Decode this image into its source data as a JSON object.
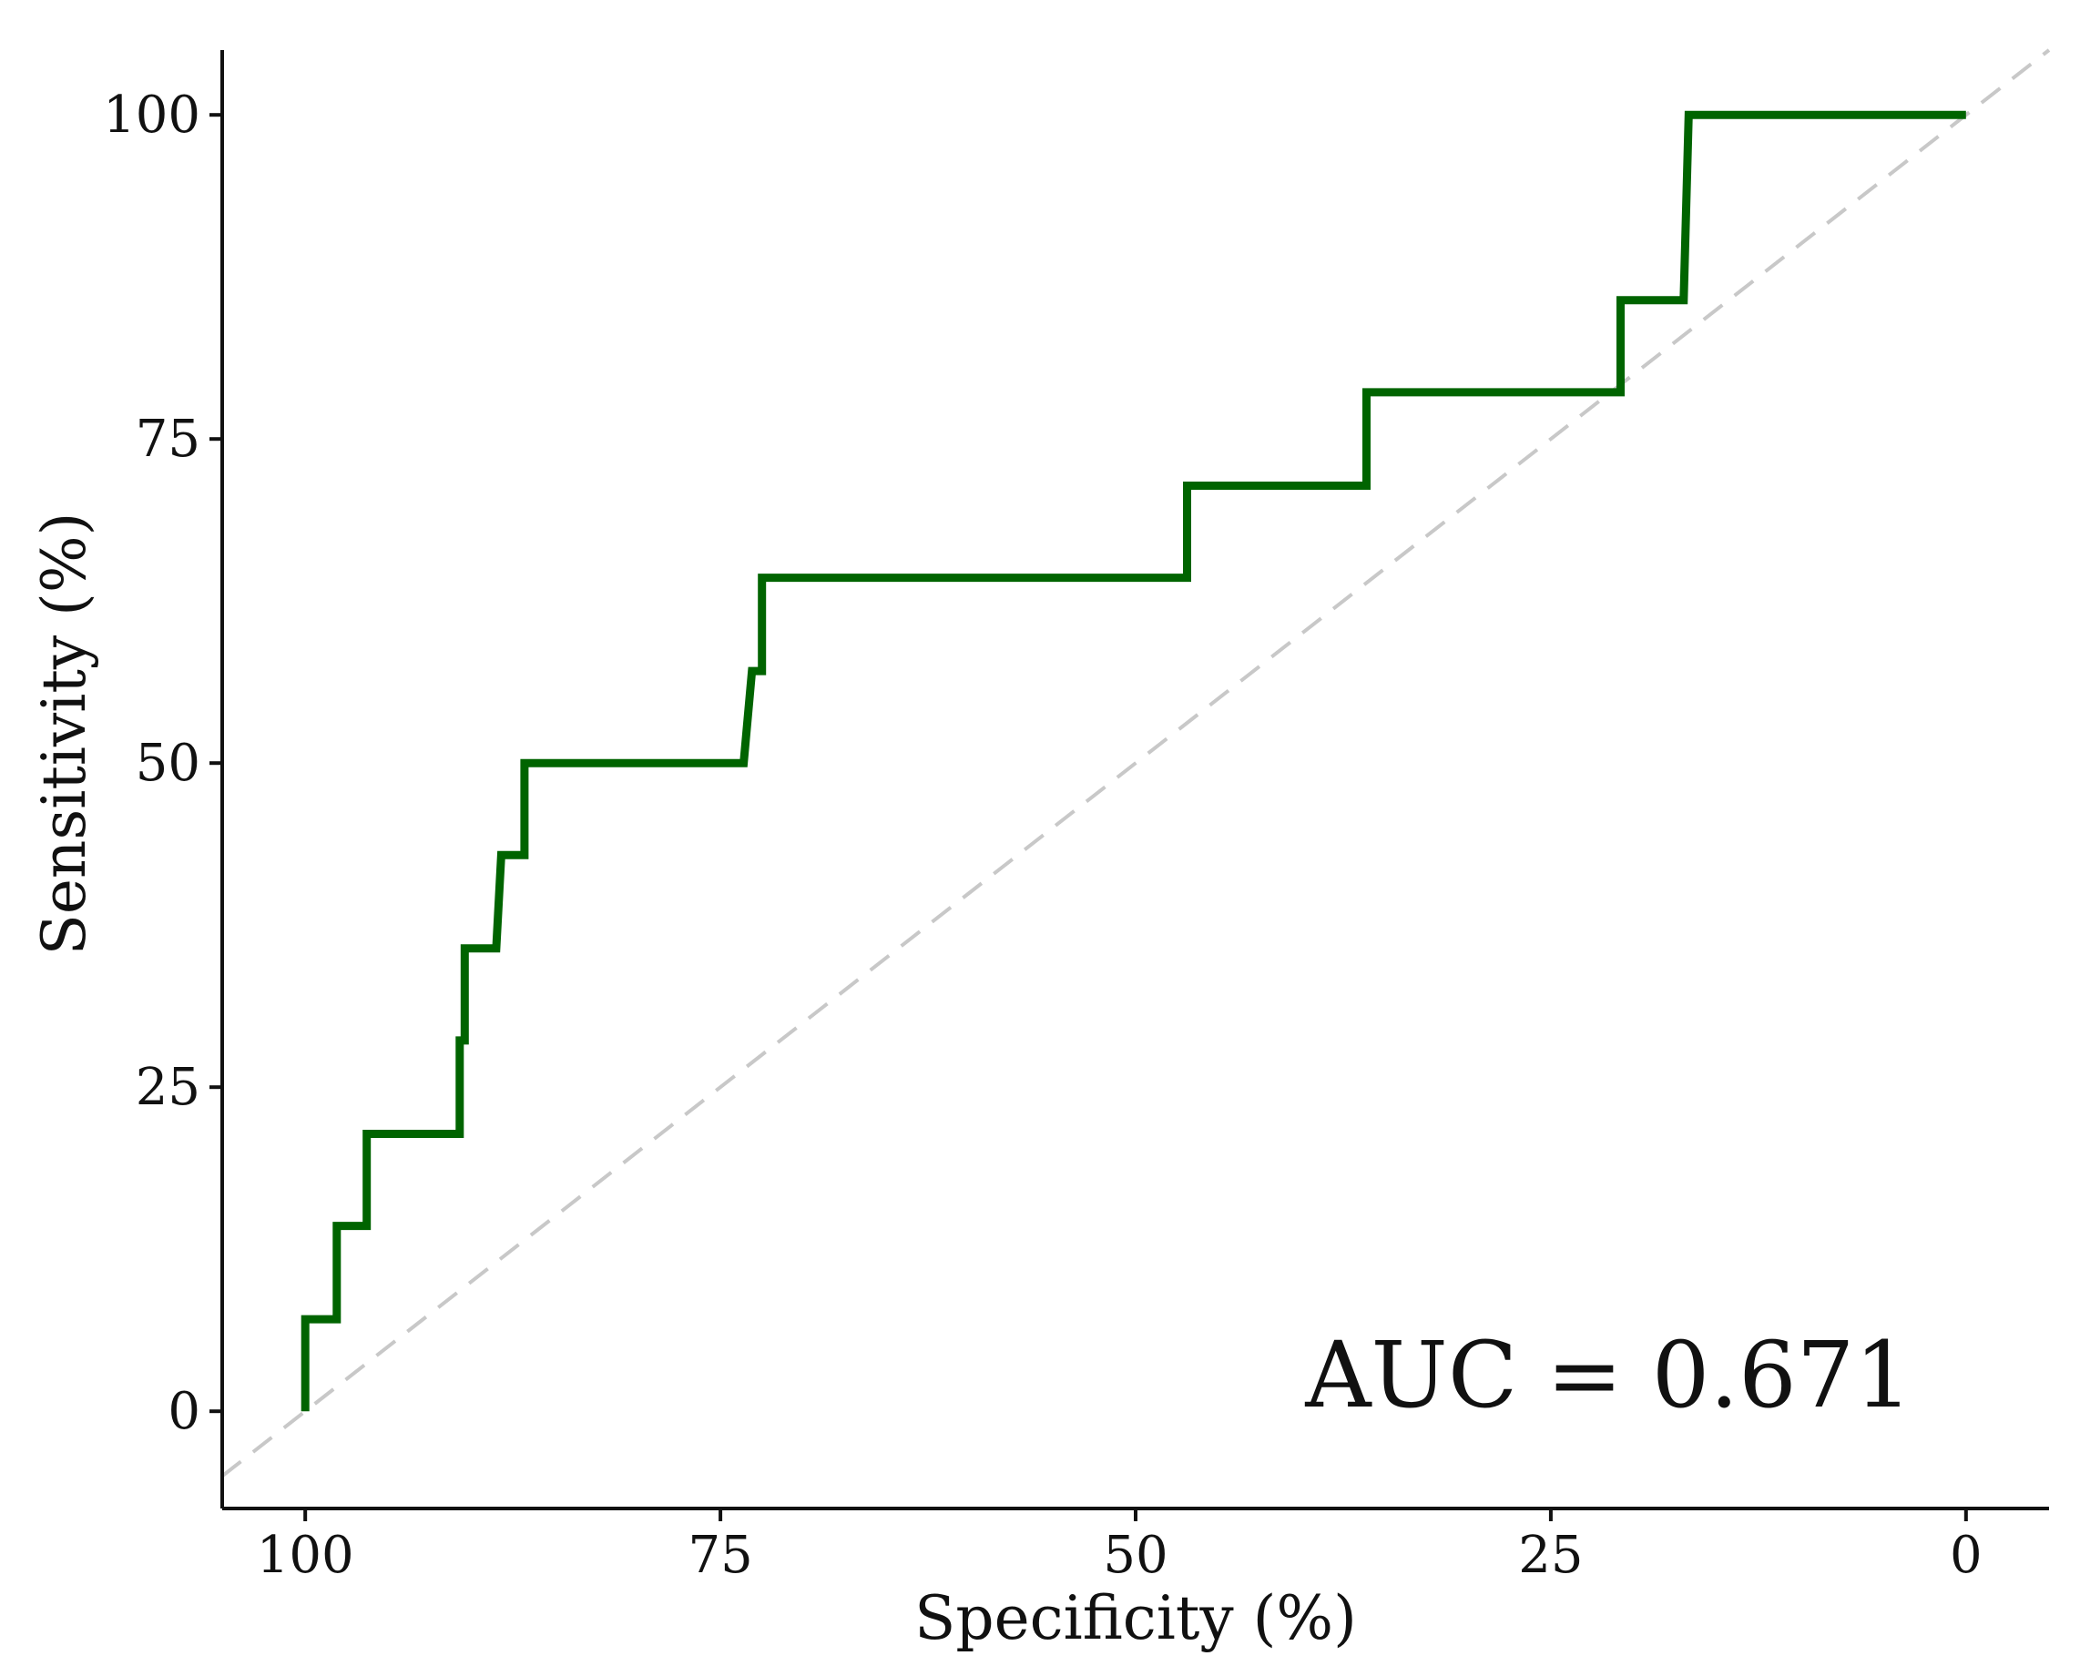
{
  "chart_data": {
    "type": "line",
    "title": "",
    "xlabel": "Specificity (%)",
    "ylabel": "Sensitivity (%)",
    "x_reversed": true,
    "xlim": [
      105,
      -5
    ],
    "ylim": [
      -7.5,
      105
    ],
    "x_ticks": [
      100,
      75,
      50,
      25,
      0
    ],
    "x_tick_labels": [
      "100",
      "75",
      "50",
      "25",
      "0"
    ],
    "y_ticks": [
      0,
      25,
      50,
      75,
      100
    ],
    "y_tick_labels": [
      "0",
      "25",
      "50",
      "75",
      "100"
    ],
    "grid": false,
    "legend": "none",
    "annotation": "AUC = 0.671",
    "series": [
      {
        "color": "#006400",
        "specificity": [
          100,
          100,
          98.1,
          98.1,
          96.3,
          96.3,
          90.7,
          90.7,
          90.4,
          90.4,
          88.5,
          88.2,
          86.8,
          86.8,
          73.6,
          73.1,
          72.5,
          72.5,
          46.9,
          46.9,
          36.1,
          36.1,
          20.8,
          20.8,
          17.0,
          16.7,
          0
        ],
        "sensitivity": [
          0,
          7.1,
          7.1,
          14.3,
          14.3,
          21.4,
          21.4,
          28.6,
          28.6,
          35.7,
          35.7,
          42.9,
          42.9,
          50.0,
          50.0,
          57.1,
          57.1,
          64.3,
          64.3,
          71.4,
          71.4,
          78.6,
          78.6,
          85.7,
          85.7,
          100,
          100
        ]
      }
    ],
    "reference_line": {
      "from": [
        100,
        0
      ],
      "to": [
        0,
        100
      ],
      "color": "#c8c8c8",
      "style": "dashed"
    }
  }
}
